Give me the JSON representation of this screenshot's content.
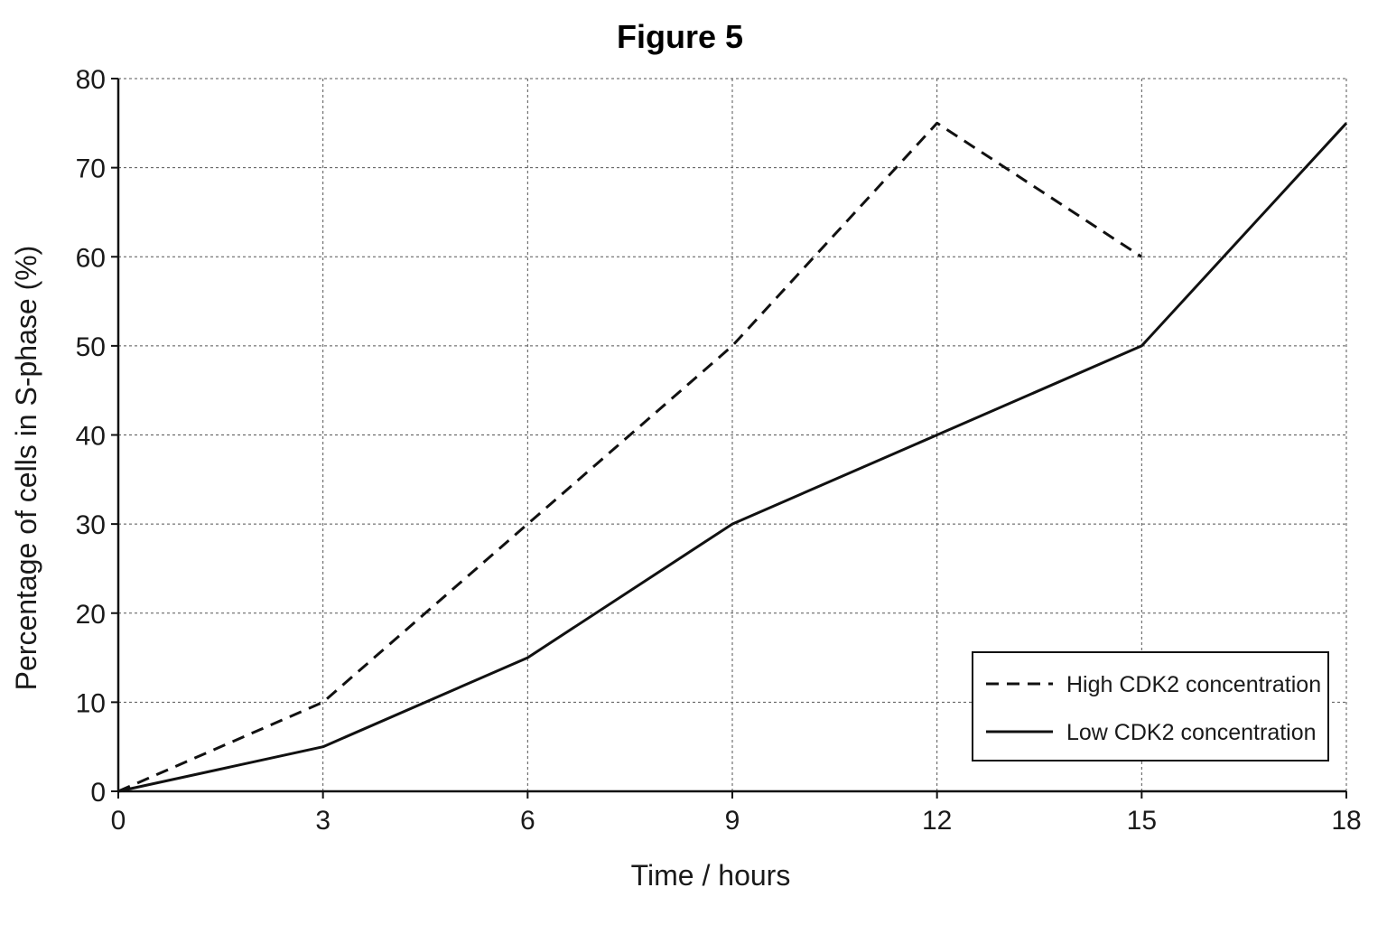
{
  "chart_data": {
    "type": "line",
    "title": "Figure 5",
    "xlabel": "Time / hours",
    "ylabel": "Percentage of cells in S-phase (%)",
    "xlim": [
      0,
      18
    ],
    "ylim": [
      0,
      80
    ],
    "xticks": [
      0,
      3,
      6,
      9,
      12,
      15,
      18
    ],
    "yticks": [
      0,
      10,
      20,
      30,
      40,
      50,
      60,
      70,
      80
    ],
    "grid": true,
    "legend_position": "bottom-right",
    "series": [
      {
        "name": "High CDK2 concentration",
        "style": "dashed",
        "color": "#111111",
        "points": [
          {
            "x": 0,
            "y": 0
          },
          {
            "x": 3,
            "y": 10
          },
          {
            "x": 6,
            "y": 30
          },
          {
            "x": 9,
            "y": 50
          },
          {
            "x": 12,
            "y": 75
          },
          {
            "x": 15,
            "y": 60
          }
        ]
      },
      {
        "name": "Low CDK2 concentration",
        "style": "solid",
        "color": "#111111",
        "points": [
          {
            "x": 0,
            "y": 0
          },
          {
            "x": 3,
            "y": 5
          },
          {
            "x": 6,
            "y": 15
          },
          {
            "x": 9,
            "y": 30
          },
          {
            "x": 12,
            "y": 40
          },
          {
            "x": 15,
            "y": 50
          },
          {
            "x": 18,
            "y": 75
          }
        ]
      }
    ]
  }
}
